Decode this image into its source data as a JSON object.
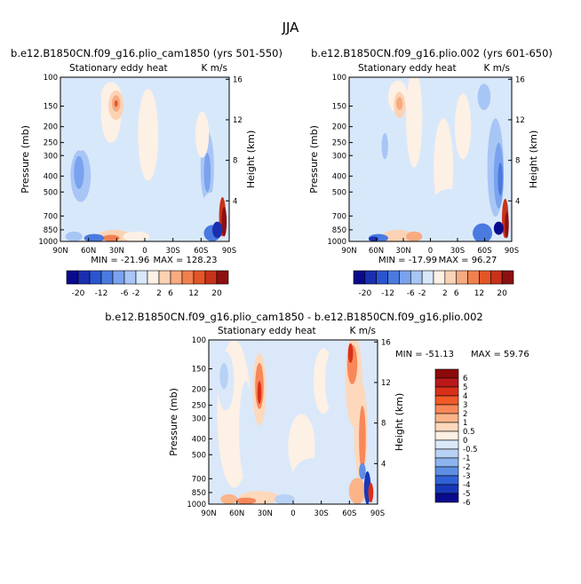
{
  "page": {
    "title": "JJA"
  },
  "chart_data": [
    {
      "type": "heatmap",
      "id": "p1",
      "title": "b.e12.B1850CN.f09_g16.plio_cam1850 (yrs 501-550)",
      "subtitle_left": "Stationary eddy heat",
      "subtitle_right": "K m/s",
      "xlabel": "",
      "ylabel": "Pressure (mb)",
      "ylabel_right": "Height (km)",
      "x_ticks": [
        "90N",
        "60N",
        "30N",
        "0",
        "30S",
        "60S",
        "90S"
      ],
      "y_ticks": [
        "100",
        "150",
        "200",
        "250",
        "300",
        "400",
        "500",
        "700",
        "850",
        "1000"
      ],
      "y_ticks_right": [
        "4",
        "8",
        "12",
        "16"
      ],
      "min_text": "MIN = -21.96",
      "max_text": "MAX = 128.23",
      "colorbar_labels": [
        "-20",
        "-12",
        "-6",
        "-2",
        "2",
        "6",
        "12",
        "20"
      ]
    },
    {
      "type": "heatmap",
      "id": "p2",
      "title": "b.e12.B1850CN.f09_g16.plio.002 (yrs 601-650)",
      "subtitle_left": "Stationary eddy heat",
      "subtitle_right": "K m/s",
      "xlabel": "",
      "ylabel": "Pressure (mb)",
      "ylabel_right": "Height (km)",
      "x_ticks": [
        "90N",
        "60N",
        "30N",
        "0",
        "30S",
        "60S",
        "90S"
      ],
      "y_ticks": [
        "100",
        "150",
        "200",
        "250",
        "300",
        "400",
        "500",
        "700",
        "850",
        "1000"
      ],
      "y_ticks_right": [
        "4",
        "8",
        "12",
        "16"
      ],
      "min_text": "MIN = -17.99",
      "max_text": "MAX = 96.27",
      "colorbar_labels": [
        "-20",
        "-12",
        "-6",
        "-2",
        "2",
        "6",
        "12",
        "20"
      ]
    },
    {
      "type": "heatmap",
      "id": "p3",
      "title": "b.e12.B1850CN.f09_g16.plio_cam1850 - b.e12.B1850CN.f09_g16.plio.002",
      "subtitle_left": "Stationary eddy heat",
      "subtitle_right": "K m/s",
      "xlabel": "",
      "ylabel": "Pressure (mb)",
      "ylabel_right": "Height (km)",
      "x_ticks": [
        "90N",
        "60N",
        "30N",
        "0",
        "30S",
        "60S",
        "90S"
      ],
      "y_ticks": [
        "100",
        "150",
        "200",
        "250",
        "300",
        "400",
        "500",
        "700",
        "850",
        "1000"
      ],
      "y_ticks_right": [
        "4",
        "8",
        "12",
        "16"
      ],
      "min_text": "MIN = -51.13",
      "max_text": "MAX = 59.76",
      "colorbar_labels": [
        "6",
        "5",
        "4",
        "3",
        "2",
        "1",
        "0.5",
        "0",
        "-0.5",
        "-1",
        "-2",
        "-3",
        "-4",
        "-5",
        "-6"
      ]
    }
  ],
  "palette_abs": [
    "#0a0a8c",
    "#1a2fb0",
    "#2a55d0",
    "#4a7ae0",
    "#7aa2ee",
    "#a8c6f5",
    "#d8e8fb",
    "#fdf0e4",
    "#fcd2b4",
    "#f8aa80",
    "#f2804f",
    "#e45528",
    "#c8321a",
    "#8c1010"
  ],
  "palette_diff": [
    "#8c0a0a",
    "#b8181a",
    "#d83018",
    "#f05a28",
    "#f8885a",
    "#fbb488",
    "#fdd8bc",
    "#fdf0e4",
    "#dae8fa",
    "#b8d2f5",
    "#8db4ee",
    "#5e8ee4",
    "#2f62d8",
    "#1838b8",
    "#0a0a8c"
  ]
}
